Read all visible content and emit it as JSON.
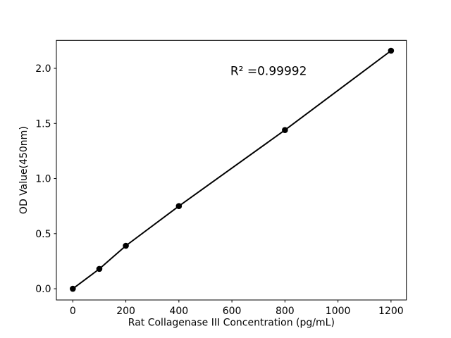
{
  "figure": {
    "background": "#ffffff",
    "foreground": "#000000"
  },
  "chart_data": {
    "type": "line",
    "title": "",
    "x": [
      0,
      100,
      200,
      400,
      800,
      1200
    ],
    "y": [
      0.0,
      0.18,
      0.39,
      0.75,
      1.44,
      2.16
    ],
    "xlabel": "Rat Collagenase III Concentration (pg/mL)",
    "ylabel": "OD Value(450nm)",
    "x_ticks": [
      0,
      200,
      400,
      600,
      800,
      1000,
      1200
    ],
    "x_tick_labels": [
      "0",
      "200",
      "400",
      "600",
      "800",
      "1000",
      "1200"
    ],
    "y_ticks": [
      0.0,
      0.5,
      1.0,
      1.5,
      2.0
    ],
    "y_tick_labels": [
      "0.0",
      "0.5",
      "1.0",
      "1.5",
      "2.0"
    ],
    "xlim": [
      -62,
      1258
    ],
    "ylim": [
      -0.102,
      2.254
    ],
    "grid": false,
    "legend": null,
    "line_color": "#000000",
    "marker_color": "#000000",
    "marker": "circle",
    "annotation": {
      "text": "R² =0.99992",
      "x": 594,
      "y": 1.941
    }
  }
}
